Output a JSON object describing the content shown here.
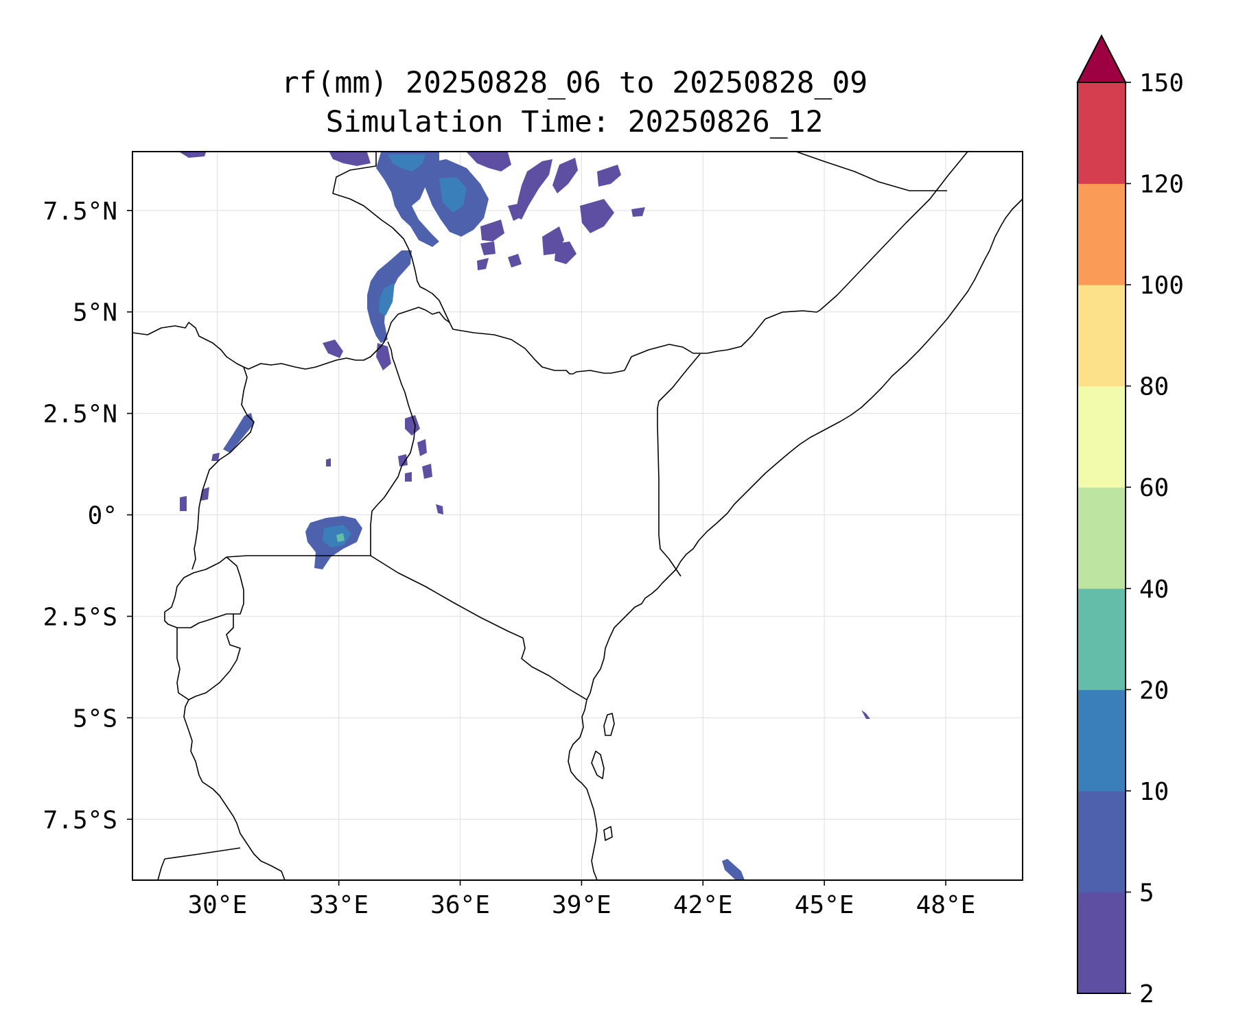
{
  "title": {
    "line1": "rf(mm) 20250828_06 to 20250828_09",
    "line2": "Simulation Time: 20250826_12"
  },
  "map": {
    "lon_range": [
      27.9,
      49.9
    ],
    "lat_range": [
      -9.0,
      8.95
    ],
    "x_ticks": [
      {
        "value": 30,
        "label": "30°E"
      },
      {
        "value": 33,
        "label": "33°E"
      },
      {
        "value": 36,
        "label": "36°E"
      },
      {
        "value": 39,
        "label": "39°E"
      },
      {
        "value": 42,
        "label": "42°E"
      },
      {
        "value": 45,
        "label": "45°E"
      },
      {
        "value": 48,
        "label": "48°E"
      }
    ],
    "y_ticks": [
      {
        "value": 7.5,
        "label": "7.5°N"
      },
      {
        "value": 5,
        "label": "5°N"
      },
      {
        "value": 2.5,
        "label": "2.5°N"
      },
      {
        "value": 0,
        "label": "0°"
      },
      {
        "value": -2.5,
        "label": "2.5°S"
      },
      {
        "value": -5,
        "label": "5°S"
      },
      {
        "value": -7.5,
        "label": "7.5°S"
      }
    ],
    "gridlines": true,
    "colors": {
      "rain_2_5": "#5e4fa2",
      "rain_5_10": "#4e61ad",
      "rain_10_20": "#3a7fb9",
      "rain_20_40": "#64bda9"
    }
  },
  "colorbar": {
    "levels": [
      2,
      5,
      10,
      20,
      40,
      60,
      80,
      100,
      120,
      150
    ],
    "labels": [
      "2",
      "5",
      "10",
      "20",
      "40",
      "60",
      "80",
      "100",
      "120",
      "150"
    ],
    "colors": [
      "#5e4fa2",
      "#4e61ad",
      "#3a7fb9",
      "#64bda9",
      "#bde4a0",
      "#f2faac",
      "#fce08a",
      "#fa9c58",
      "#d53e4f"
    ],
    "extend_color": "#9e0142",
    "extend": "max"
  }
}
